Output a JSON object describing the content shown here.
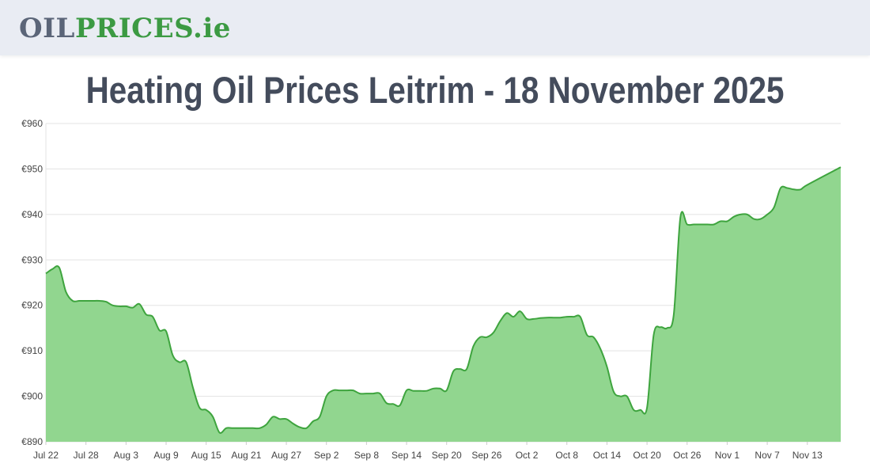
{
  "header": {
    "logo_part1": "OIL",
    "logo_part2": "PRICES",
    "logo_part3": ".ie"
  },
  "page": {
    "title": "Heating Oil Prices Leitrim - 18 November 2025"
  },
  "colors": {
    "line": "#3ea43e",
    "fill": "#91d68f",
    "grid": "#e3e3e3",
    "header_bg": "#e9ecf3",
    "title": "#444c5c"
  },
  "chart_data": {
    "type": "area",
    "title": "",
    "xlabel": "",
    "ylabel": "",
    "ylim": [
      890,
      960
    ],
    "y_ticks": [
      "€890",
      "€900",
      "€910",
      "€920",
      "€930",
      "€940",
      "€950",
      "€960"
    ],
    "x_tick_labels": [
      "Jul 22",
      "Jul 28",
      "Aug 3",
      "Aug 9",
      "Aug 15",
      "Aug 21",
      "Aug 27",
      "Sep 2",
      "Sep 8",
      "Sep 14",
      "Sep 20",
      "Sep 26",
      "Oct 2",
      "Oct 8",
      "Oct 14",
      "Oct 20",
      "Oct 26",
      "Nov 1",
      "Nov 7",
      "Nov 13"
    ],
    "x_start": "Jul 22",
    "x_end": "Nov 18",
    "grid": true,
    "legend": "none",
    "series": [
      {
        "values": [
          {
            "x": "Jul 22",
            "y": 927.0
          },
          {
            "x": "Jul 23",
            "y": 928.0
          },
          {
            "x": "Jul 24",
            "y": 928.3
          },
          {
            "x": "Jul 25",
            "y": 923.0
          },
          {
            "x": "Jul 26",
            "y": 921.0
          },
          {
            "x": "Jul 27",
            "y": 921.0
          },
          {
            "x": "Jul 28",
            "y": 921.0
          },
          {
            "x": "Jul 29",
            "y": 921.0
          },
          {
            "x": "Jul 30",
            "y": 921.0
          },
          {
            "x": "Jul 31",
            "y": 920.8
          },
          {
            "x": "Aug 1",
            "y": 920.0
          },
          {
            "x": "Aug 2",
            "y": 919.8
          },
          {
            "x": "Aug 3",
            "y": 919.8
          },
          {
            "x": "Aug 4",
            "y": 919.5
          },
          {
            "x": "Aug 5",
            "y": 920.3
          },
          {
            "x": "Aug 6",
            "y": 918.0
          },
          {
            "x": "Aug 7",
            "y": 917.5
          },
          {
            "x": "Aug 8",
            "y": 914.5
          },
          {
            "x": "Aug 9",
            "y": 914.3
          },
          {
            "x": "Aug 10",
            "y": 909.0
          },
          {
            "x": "Aug 11",
            "y": 907.5
          },
          {
            "x": "Aug 12",
            "y": 907.5
          },
          {
            "x": "Aug 13",
            "y": 902.0
          },
          {
            "x": "Aug 14",
            "y": 897.5
          },
          {
            "x": "Aug 15",
            "y": 897.0
          },
          {
            "x": "Aug 16",
            "y": 895.5
          },
          {
            "x": "Aug 17",
            "y": 892.0
          },
          {
            "x": "Aug 18",
            "y": 893.0
          },
          {
            "x": "Aug 19",
            "y": 893.0
          },
          {
            "x": "Aug 20",
            "y": 893.0
          },
          {
            "x": "Aug 21",
            "y": 893.0
          },
          {
            "x": "Aug 22",
            "y": 893.0
          },
          {
            "x": "Aug 23",
            "y": 893.0
          },
          {
            "x": "Aug 24",
            "y": 893.8
          },
          {
            "x": "Aug 25",
            "y": 895.5
          },
          {
            "x": "Aug 26",
            "y": 895.0
          },
          {
            "x": "Aug 27",
            "y": 895.0
          },
          {
            "x": "Aug 28",
            "y": 894.0
          },
          {
            "x": "Aug 29",
            "y": 893.2
          },
          {
            "x": "Aug 30",
            "y": 893.0
          },
          {
            "x": "Aug 31",
            "y": 894.5
          },
          {
            "x": "Sep 1",
            "y": 895.5
          },
          {
            "x": "Sep 2",
            "y": 900.0
          },
          {
            "x": "Sep 3",
            "y": 901.3
          },
          {
            "x": "Sep 4",
            "y": 901.3
          },
          {
            "x": "Sep 5",
            "y": 901.3
          },
          {
            "x": "Sep 6",
            "y": 901.3
          },
          {
            "x": "Sep 7",
            "y": 900.6
          },
          {
            "x": "Sep 8",
            "y": 900.6
          },
          {
            "x": "Sep 9",
            "y": 900.6
          },
          {
            "x": "Sep 10",
            "y": 900.6
          },
          {
            "x": "Sep 11",
            "y": 898.5
          },
          {
            "x": "Sep 12",
            "y": 898.3
          },
          {
            "x": "Sep 13",
            "y": 898.0
          },
          {
            "x": "Sep 14",
            "y": 901.3
          },
          {
            "x": "Sep 15",
            "y": 901.2
          },
          {
            "x": "Sep 16",
            "y": 901.2
          },
          {
            "x": "Sep 17",
            "y": 901.2
          },
          {
            "x": "Sep 18",
            "y": 901.7
          },
          {
            "x": "Sep 19",
            "y": 901.7
          },
          {
            "x": "Sep 20",
            "y": 901.3
          },
          {
            "x": "Sep 21",
            "y": 905.5
          },
          {
            "x": "Sep 22",
            "y": 906.0
          },
          {
            "x": "Sep 23",
            "y": 906.0
          },
          {
            "x": "Sep 24",
            "y": 911.0
          },
          {
            "x": "Sep 25",
            "y": 913.0
          },
          {
            "x": "Sep 26",
            "y": 913.0
          },
          {
            "x": "Sep 27",
            "y": 914.0
          },
          {
            "x": "Sep 28",
            "y": 916.5
          },
          {
            "x": "Sep 29",
            "y": 918.3
          },
          {
            "x": "Sep 30",
            "y": 917.5
          },
          {
            "x": "Oct 1",
            "y": 918.7
          },
          {
            "x": "Oct 2",
            "y": 917.0
          },
          {
            "x": "Oct 3",
            "y": 917.0
          },
          {
            "x": "Oct 4",
            "y": 917.2
          },
          {
            "x": "Oct 5",
            "y": 917.3
          },
          {
            "x": "Oct 6",
            "y": 917.3
          },
          {
            "x": "Oct 7",
            "y": 917.3
          },
          {
            "x": "Oct 8",
            "y": 917.5
          },
          {
            "x": "Oct 9",
            "y": 917.5
          },
          {
            "x": "Oct 10",
            "y": 917.5
          },
          {
            "x": "Oct 11",
            "y": 913.5
          },
          {
            "x": "Oct 12",
            "y": 913.0
          },
          {
            "x": "Oct 13",
            "y": 910.5
          },
          {
            "x": "Oct 14",
            "y": 906.5
          },
          {
            "x": "Oct 15",
            "y": 901.0
          },
          {
            "x": "Oct 16",
            "y": 900.0
          },
          {
            "x": "Oct 17",
            "y": 900.0
          },
          {
            "x": "Oct 18",
            "y": 897.0
          },
          {
            "x": "Oct 19",
            "y": 897.0
          },
          {
            "x": "Oct 20",
            "y": 897.5
          },
          {
            "x": "Oct 21",
            "y": 913.5
          },
          {
            "x": "Oct 22",
            "y": 915.2
          },
          {
            "x": "Oct 23",
            "y": 915.0
          },
          {
            "x": "Oct 24",
            "y": 918.0
          },
          {
            "x": "Oct 25",
            "y": 939.4
          },
          {
            "x": "Oct 26",
            "y": 937.8
          },
          {
            "x": "Oct 27",
            "y": 937.8
          },
          {
            "x": "Oct 28",
            "y": 937.8
          },
          {
            "x": "Oct 29",
            "y": 937.8
          },
          {
            "x": "Oct 30",
            "y": 937.8
          },
          {
            "x": "Oct 31",
            "y": 938.5
          },
          {
            "x": "Nov 1",
            "y": 938.5
          },
          {
            "x": "Nov 2",
            "y": 939.5
          },
          {
            "x": "Nov 3",
            "y": 940.0
          },
          {
            "x": "Nov 4",
            "y": 940.0
          },
          {
            "x": "Nov 5",
            "y": 939.0
          },
          {
            "x": "Nov 6",
            "y": 939.0
          },
          {
            "x": "Nov 7",
            "y": 940.0
          },
          {
            "x": "Nov 8",
            "y": 941.5
          },
          {
            "x": "Nov 9",
            "y": 945.8
          },
          {
            "x": "Nov 10",
            "y": 945.8
          },
          {
            "x": "Nov 11",
            "y": 945.5
          },
          {
            "x": "Nov 12",
            "y": 945.5
          },
          {
            "x": "Nov 13",
            "y": 946.5
          },
          {
            "x": "Nov 18",
            "y": 950.4
          }
        ]
      }
    ]
  }
}
